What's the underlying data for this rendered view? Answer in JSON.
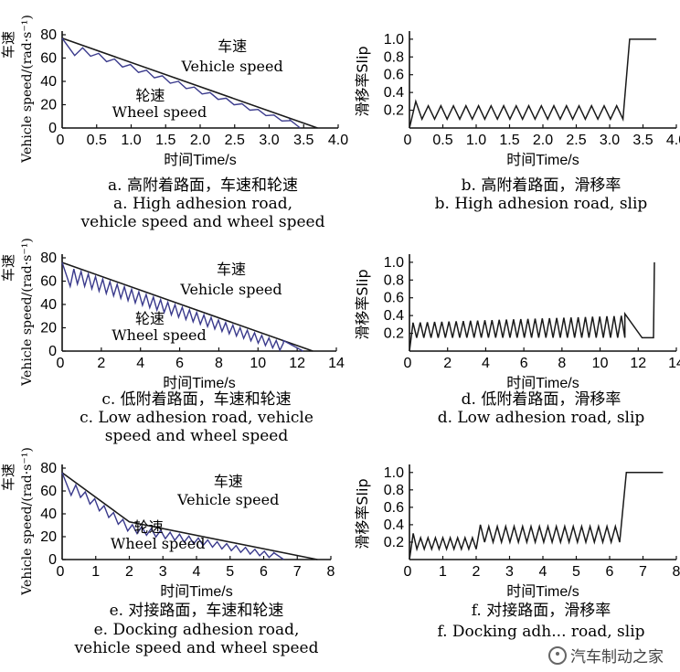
{
  "figure": {
    "watermark": "汽车制动之家"
  },
  "colors": {
    "vehicle": "#1a1a1a",
    "wheel": "#3a3a8c",
    "slip": "#1a1a1a",
    "axis": "#111111"
  },
  "chart_data": [
    {
      "type": "line",
      "kind": "speed",
      "xlabel": "时间Time/s",
      "ylabel": "Vehicle speed/(rad·s⁻¹)",
      "ylabel_cn": "车速",
      "xlim": [
        0,
        4.0
      ],
      "ylim": [
        0,
        80
      ],
      "xticks": [
        "0.5",
        "1.0",
        "1.5",
        "2.0",
        "2.5",
        "3.0",
        "3.5",
        "4.0"
      ],
      "yticks": [
        "0",
        "20",
        "40",
        "60",
        "80"
      ],
      "anno_vehicle_cn": "车速",
      "anno_vehicle_en": "Vehicle speed",
      "anno_wheel_cn": "轮速",
      "anno_wheel_en": "Wheel speed",
      "caption_cn": "a. 高附着路面，车速和轮速",
      "caption_en_1": "a. High adhesion road,",
      "caption_en_2": "vehicle speed and wheel speed",
      "series": [
        {
          "name": "Vehicle speed",
          "x": [
            0,
            3.7
          ],
          "y": [
            77,
            0
          ]
        },
        {
          "name": "Wheel speed",
          "start": 77,
          "cycles": 14,
          "t_end": 3.3,
          "depth": 7,
          "tail": [
            3.3,
            3.45
          ],
          "tail_y": [
            7,
            0
          ]
        }
      ]
    },
    {
      "type": "line",
      "kind": "slip",
      "xlabel": "时间Time/s",
      "ylabel": "滑移率Slip",
      "xlim": [
        0,
        4.0
      ],
      "ylim": [
        0,
        1.05
      ],
      "xticks": [
        "0.5",
        "1.0",
        "1.5",
        "2.0",
        "2.5",
        "3.0",
        "3.5",
        "4.0"
      ],
      "yticks": [
        "0.2",
        "0.4",
        "0.6",
        "0.8",
        "1.0"
      ],
      "caption_cn": "b. 高附着路面，滑移率",
      "caption_en_1": "b. High adhesion road, slip",
      "caption_en_2": "",
      "series": [
        {
          "name": "Slip",
          "segments": [
            {
              "t0": 0,
              "t1": 3.2,
              "first_peak": 0.3,
              "low": 0.1,
              "high": 0.25,
              "cycles": 17
            },
            {
              "t0": 3.2,
              "t1": 3.3,
              "rise_to": 1.0
            },
            {
              "t0": 3.3,
              "t1": 3.7,
              "hold": 1.0
            }
          ]
        }
      ]
    },
    {
      "type": "line",
      "kind": "speed",
      "xlabel": "时间Time/s",
      "ylabel": "Vehicle speed/(rad·s⁻¹)",
      "ylabel_cn": "车速",
      "xlim": [
        0,
        14
      ],
      "ylim": [
        0,
        80
      ],
      "xticks": [
        "2",
        "4",
        "6",
        "8",
        "10",
        "12",
        "14"
      ],
      "yticks": [
        "0",
        "20",
        "40",
        "60",
        "80"
      ],
      "anno_vehicle_cn": "车速",
      "anno_vehicle_en": "Vehicle speed",
      "anno_wheel_cn": "轮速",
      "anno_wheel_en": "Wheel speed",
      "caption_cn": "c. 低附着路面，车速和轮速",
      "caption_en_1": "c. Low adhesion road, vehicle",
      "caption_en_2": "speed and wheel speed",
      "series": [
        {
          "name": "Vehicle speed",
          "x": [
            0,
            12.8
          ],
          "y": [
            76,
            0
          ]
        },
        {
          "name": "Wheel speed",
          "start": 76,
          "cycles": 30,
          "t_end": 11.3,
          "depth": 14,
          "tail": [
            11.3,
            12.3
          ],
          "tail_y": [
            9,
            0
          ]
        }
      ]
    },
    {
      "type": "line",
      "kind": "slip",
      "xlabel": "时间Time/s",
      "ylabel": "滑移率Slip",
      "xlim": [
        0,
        14
      ],
      "ylim": [
        0,
        1.05
      ],
      "xticks": [
        "2",
        "4",
        "6",
        "8",
        "10",
        "12",
        "14"
      ],
      "yticks": [
        "0.2",
        "0.4",
        "0.6",
        "0.8",
        "1.0"
      ],
      "caption_cn": "d. 低附着路面，滑移率",
      "caption_en_1": "d. Low adhesion road, slip",
      "caption_en_2": "",
      "series": [
        {
          "name": "Slip",
          "segments": [
            {
              "t0": 0,
              "t1": 11.3,
              "first_peak": 0.32,
              "low": 0.15,
              "high": 0.32,
              "high_end": 0.4,
              "cycles": 30
            },
            {
              "t0": 11.3,
              "t1": 12.2,
              "ramp": [
                0.42,
                0.15
              ]
            },
            {
              "t0": 12.2,
              "t1": 12.8,
              "hold": 0.15
            },
            {
              "t0": 12.8,
              "t1": 12.85,
              "rise_to": 1.0
            }
          ]
        }
      ]
    },
    {
      "type": "line",
      "kind": "speed",
      "xlabel": "时间Time/s",
      "ylabel": "Vehicle speed/(rad·s⁻¹)",
      "ylabel_cn": "车速",
      "xlim": [
        0,
        8
      ],
      "ylim": [
        0,
        80
      ],
      "xticks": [
        "1",
        "2",
        "3",
        "4",
        "5",
        "6",
        "7",
        "8"
      ],
      "yticks": [
        "0",
        "20",
        "40",
        "60",
        "80"
      ],
      "anno_vehicle_cn": "车速",
      "anno_vehicle_en": "Vehicle speed",
      "anno_wheel_cn": "轮速",
      "anno_wheel_en": "Wheel speed",
      "caption_cn": "e. 对接路面，车速和轮速",
      "caption_en_1": "e. Docking adhesion road,",
      "caption_en_2": "vehicle speed and wheel speed",
      "series": [
        {
          "name": "Vehicle speed",
          "x": [
            0,
            2.0,
            7.6
          ],
          "y": [
            76,
            33,
            0
          ]
        },
        {
          "name": "Wheel speed",
          "start": 76,
          "cycles": 22,
          "t_end": 6.3,
          "depth": 10,
          "tail": [
            6.3,
            6.6
          ],
          "tail_y": [
            6,
            0
          ]
        }
      ]
    },
    {
      "type": "line",
      "kind": "slip",
      "xlabel": "时间Time/s",
      "ylabel": "滑移率Slip",
      "xlim": [
        0,
        8
      ],
      "ylim": [
        0,
        1.05
      ],
      "xticks": [
        "1",
        "2",
        "3",
        "4",
        "5",
        "6",
        "7",
        "8"
      ],
      "yticks": [
        "0.2",
        "0.4",
        "0.6",
        "0.8",
        "1.0"
      ],
      "caption_cn": "f. 对接路面，滑移率",
      "caption_en_1": "f. Docking adh... road, slip",
      "caption_en_2": "",
      "series": [
        {
          "name": "Slip",
          "segments": [
            {
              "t0": 0,
              "t1": 2.0,
              "first_peak": 0.3,
              "low": 0.12,
              "high": 0.25,
              "cycles": 9
            },
            {
              "t0": 2.0,
              "t1": 6.3,
              "first_peak": 0.4,
              "low": 0.2,
              "high": 0.38,
              "cycles": 17
            },
            {
              "t0": 6.3,
              "t1": 6.5,
              "rise_to": 1.0
            },
            {
              "t0": 6.5,
              "t1": 7.6,
              "hold": 1.0
            }
          ]
        }
      ]
    }
  ]
}
